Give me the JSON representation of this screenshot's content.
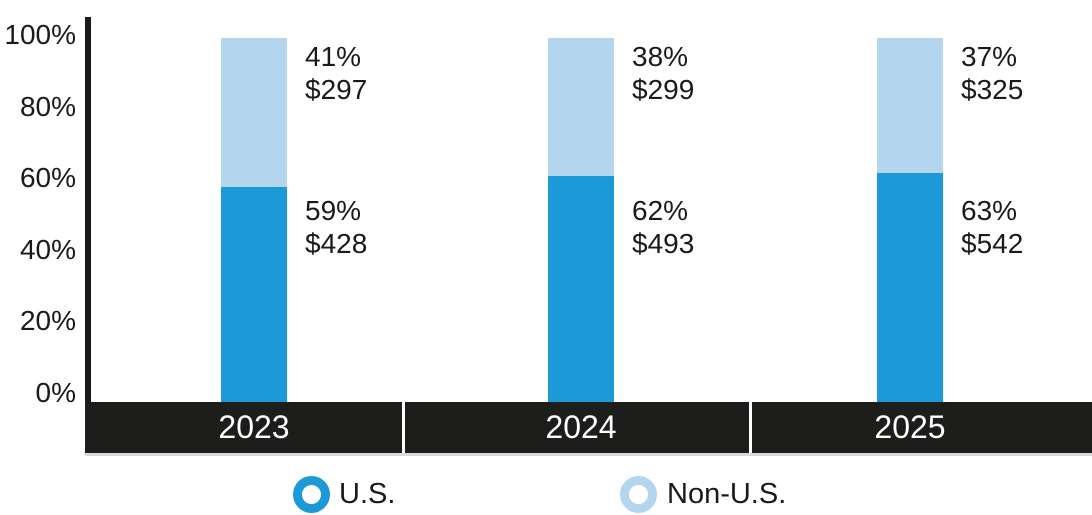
{
  "chart_data": {
    "type": "bar",
    "stacked": true,
    "title": "",
    "categories": [
      "2023",
      "2024",
      "2025"
    ],
    "series": [
      {
        "name": "U.S.",
        "color": "#1c9ad7",
        "values_pct": [
          59,
          62,
          63
        ],
        "values_usd": [
          428,
          493,
          542
        ]
      },
      {
        "name": "Non-U.S.",
        "color": "#b4d5ee",
        "values_pct": [
          41,
          38,
          37
        ],
        "values_usd": [
          297,
          299,
          325
        ]
      }
    ],
    "y_axis": {
      "tick_labels": [
        "100%",
        "80%",
        "60%",
        "40%",
        "20%",
        "0%"
      ],
      "range_pct": [
        0,
        100
      ],
      "grid": false
    },
    "x_axis": {
      "style": "black-band",
      "labels": [
        "2023",
        "2024",
        "2025"
      ]
    },
    "legend": {
      "position": "bottom",
      "marker": "ring",
      "items": [
        "U.S.",
        "Non-U.S."
      ]
    },
    "colors": {
      "us": "#1c9ad7",
      "non_us": "#b4d5ee",
      "text": "#1a1a1a",
      "axis_line": "#1a1a1a",
      "band": "#1d1d1b",
      "band_divider": "#ffffff",
      "band_bottom_edge": "#d9d9d9",
      "year_text": "#ffffff",
      "background": "#ffffff"
    }
  }
}
